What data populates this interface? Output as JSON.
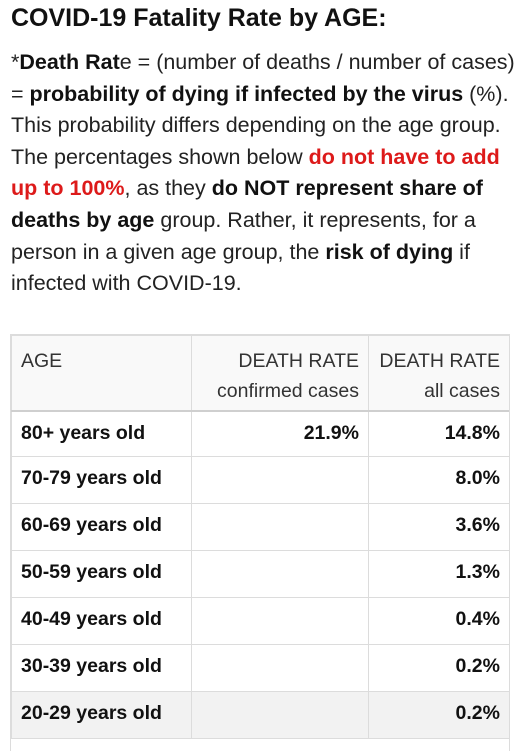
{
  "title": "COVID-19 Fatality Rate by AGE:",
  "intro": {
    "p1": "*",
    "b1": "Death Rat",
    "p2": "e = (number of deaths / number of cases) = ",
    "b2": "probability of dying if infected by the virus",
    "p3": " (%). This probability differs depending on the age group. The percentages shown below ",
    "red1": "do not have to add up to 100%",
    "p4": ", as they ",
    "b3": "do NOT represent share of deaths by age",
    "p5": " group. Rather, it represents, for a person in a given age group, the ",
    "b4": "risk of dying",
    "p6": " if infected with COVID-19."
  },
  "table": {
    "headers": {
      "age": "AGE",
      "confirmed_line1": "DEATH RATE",
      "confirmed_line2": "confirmed cases",
      "all_line1": "DEATH RATE",
      "all_line2": "all cases"
    },
    "rows": [
      {
        "age": "80+ years old",
        "confirmed": "21.9%",
        "all": "14.8%"
      },
      {
        "age": "70-79 years old",
        "confirmed": "",
        "all": "8.0%"
      },
      {
        "age": "60-69 years old",
        "confirmed": "",
        "all": "3.6%"
      },
      {
        "age": "50-59 years old",
        "confirmed": "",
        "all": "1.3%"
      },
      {
        "age": "40-49 years old",
        "confirmed": "",
        "all": "0.4%"
      },
      {
        "age": "30-39 years old",
        "confirmed": "",
        "all": "0.2%"
      },
      {
        "age": "20-29 years old",
        "confirmed": "",
        "all": "0.2%"
      }
    ]
  }
}
